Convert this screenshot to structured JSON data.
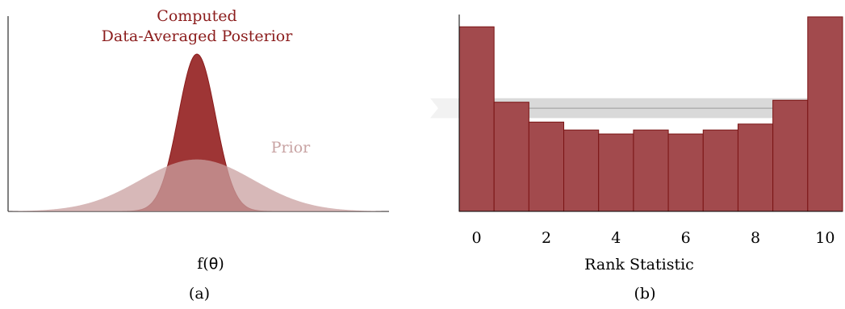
{
  "colors": {
    "posterior": "#8b1c1c",
    "posterior_fill": "#9e3535",
    "prior_fill": "#c9a0a0",
    "prior_label": "#c8a3a3",
    "bar_fill": "#a24a4d",
    "bar_stroke": "#7a1414",
    "band_fill": "#d9d9d9",
    "band_line": "#9a9a9a",
    "axis": "#000000"
  },
  "panel_a": {
    "caption": "(a)",
    "xlabel_prefix": "f(",
    "xlabel_symbol": "θ",
    "xlabel_suffix": ")",
    "posterior_label_line1": "Computed",
    "posterior_label_line2": "Data-Averaged Posterior",
    "prior_label": "Prior"
  },
  "panel_b": {
    "caption": "(b)",
    "xlabel": "Rank Statistic"
  },
  "chart_data": [
    {
      "type": "area",
      "series": [
        {
          "name": "Computed Data-Averaged Posterior",
          "distribution": "normal",
          "mean": 0,
          "sd": 0.33,
          "relative_peak": 1.0
        },
        {
          "name": "Prior",
          "distribution": "normal",
          "mean": 0,
          "sd": 1.0,
          "relative_peak": 0.33
        }
      ],
      "x_range": [
        -3.2,
        3.2
      ],
      "xlabel": "f(θ)",
      "ylabel": "",
      "grid": false
    },
    {
      "type": "bar",
      "categories": [
        0,
        1,
        2,
        3,
        4,
        5,
        6,
        7,
        8,
        9,
        10
      ],
      "values": [
        93,
        55,
        45,
        41,
        39,
        41,
        39,
        41,
        44,
        56,
        98
      ],
      "expected_band": {
        "center": 52,
        "low": 47,
        "high": 57
      },
      "xticks": [
        0,
        2,
        4,
        6,
        8,
        10
      ],
      "xlabel": "Rank Statistic",
      "ylabel": "",
      "ylim": [
        0,
        100
      ],
      "grid": false
    }
  ]
}
